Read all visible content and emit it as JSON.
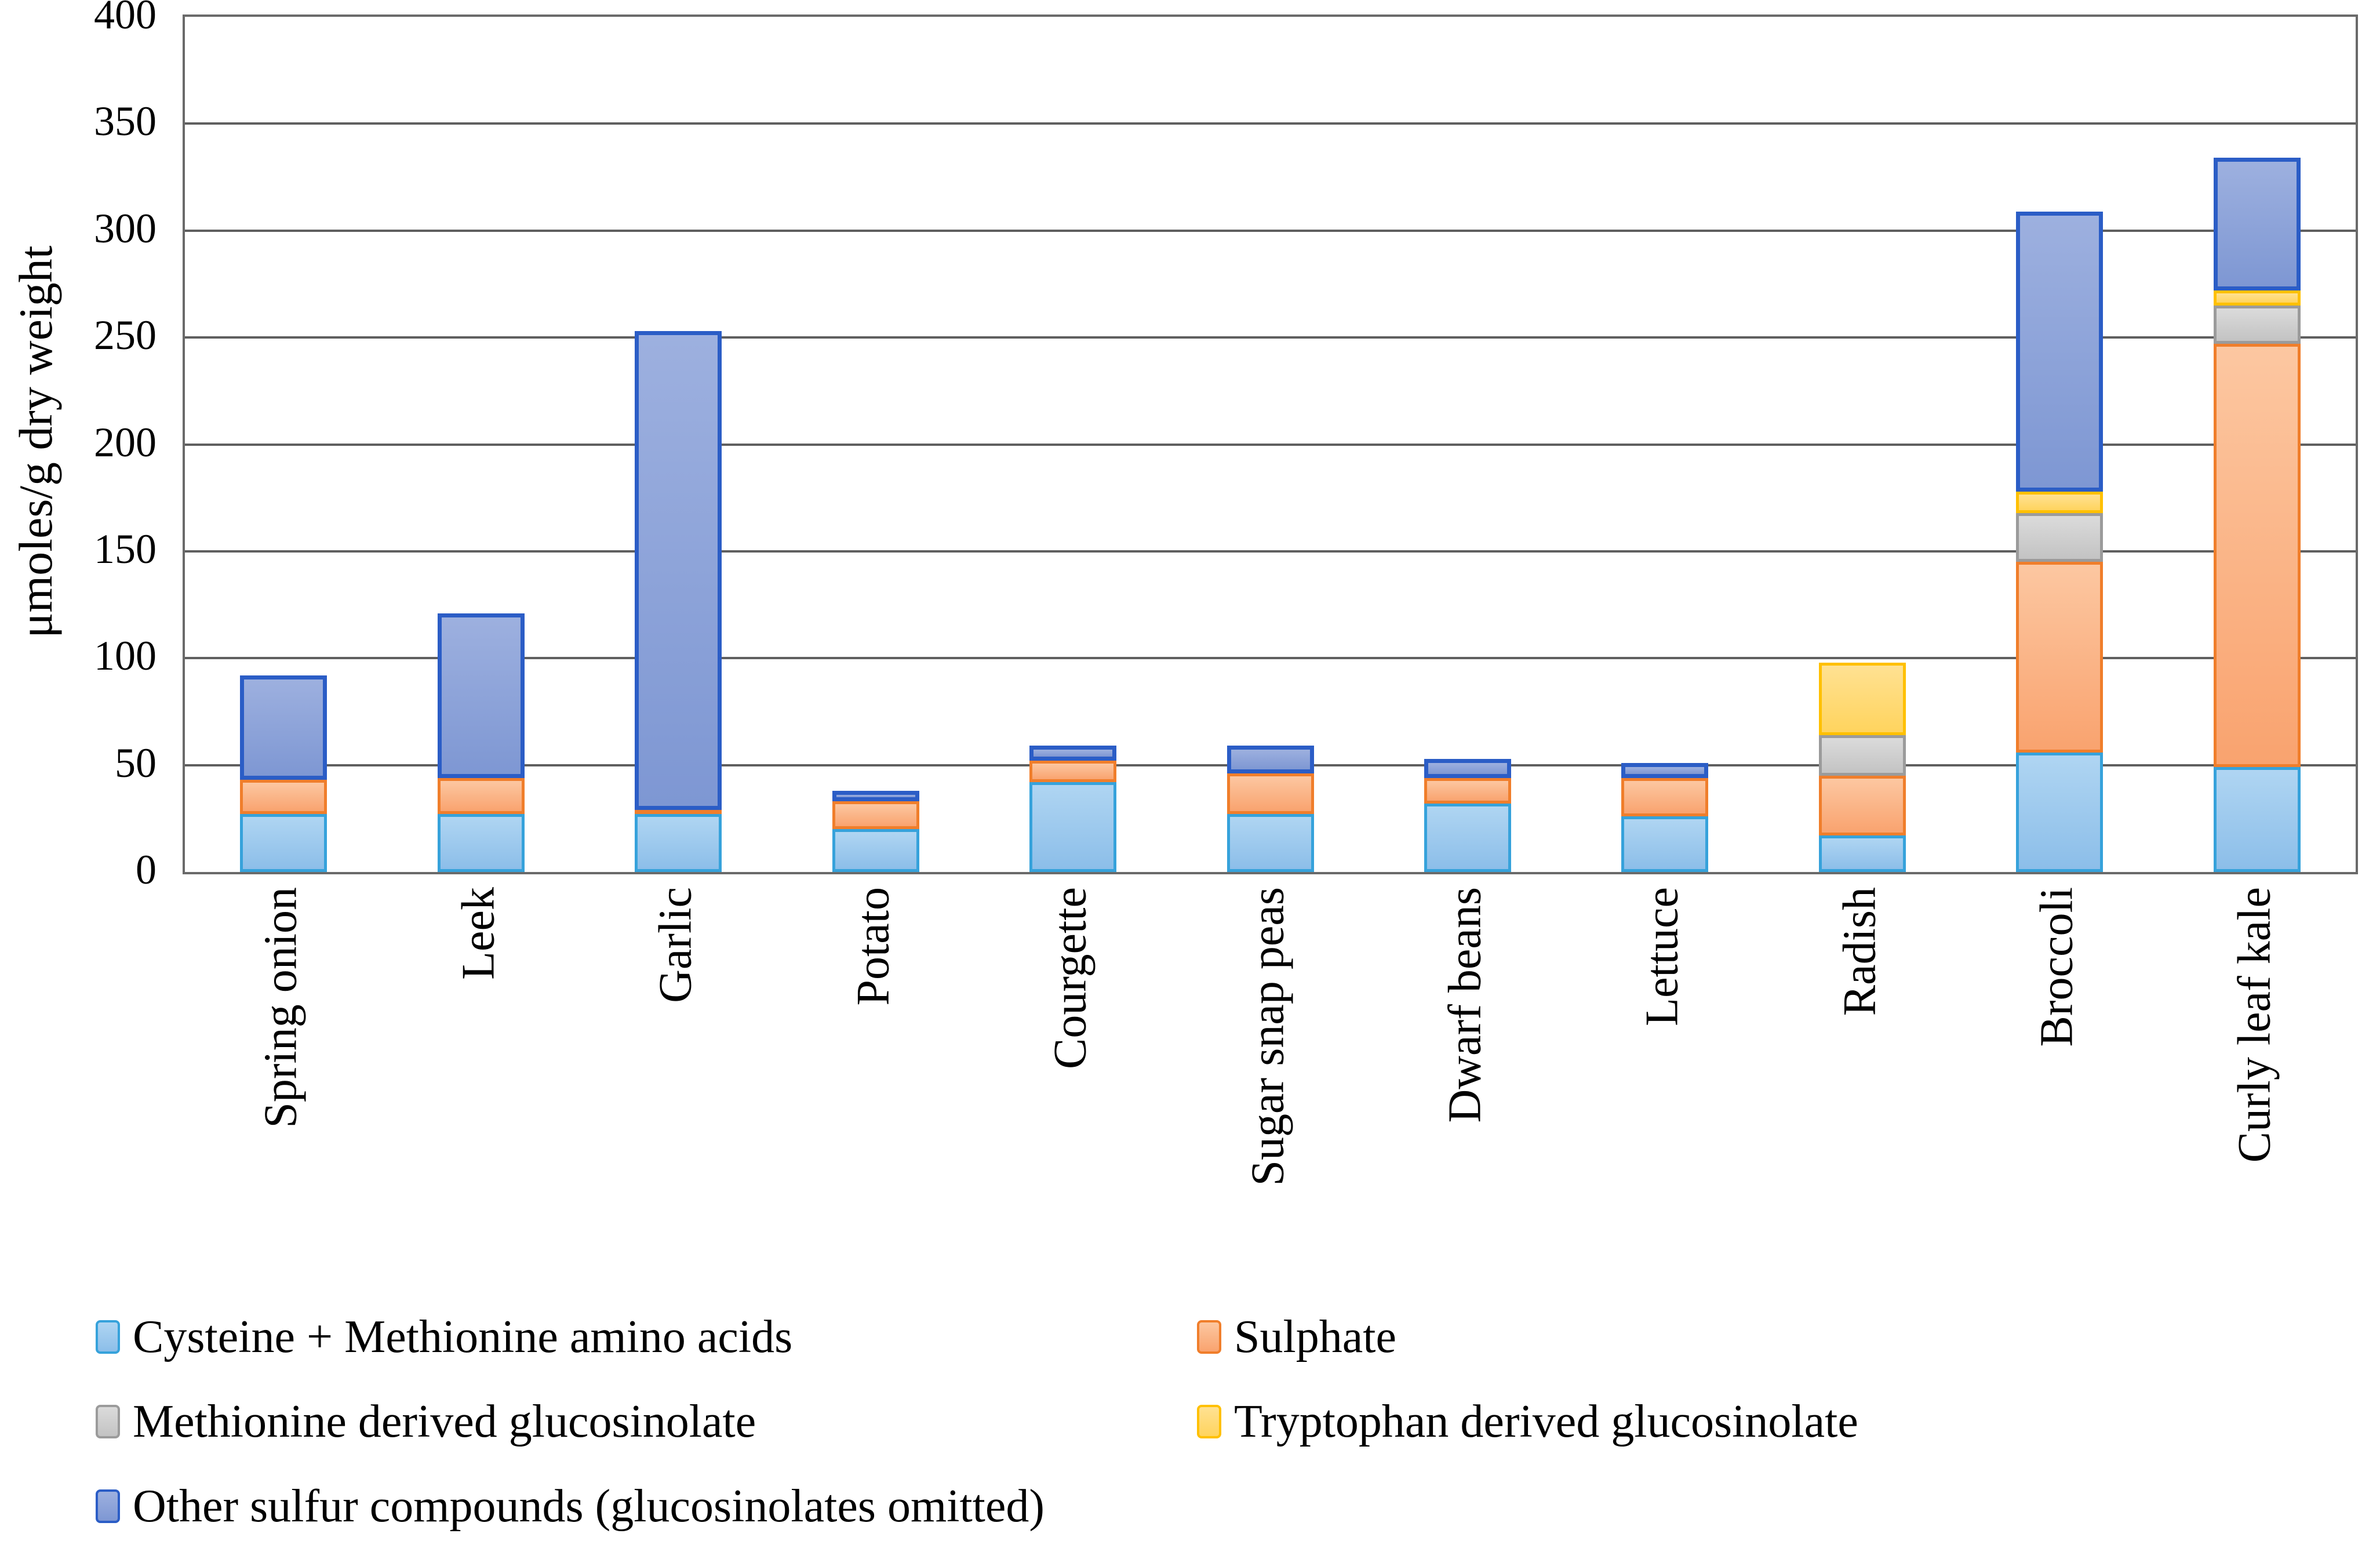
{
  "chart_data": {
    "type": "bar",
    "stacked": true,
    "orientation": "vertical",
    "title": "",
    "xlabel": "",
    "ylabel": "μmoles/g dry weight",
    "ylim": [
      0,
      400
    ],
    "ytick_step": 50,
    "yticks": [
      0,
      50,
      100,
      150,
      200,
      250,
      300,
      350,
      400
    ],
    "grid": "horizontal",
    "legend_position": "bottom",
    "categories": [
      "Spring onion",
      "Leek",
      "Garlic",
      "Potato",
      "Courgette",
      "Sugar snap peas",
      "Dwarf beans",
      "Lettuce",
      "Radish",
      "Broccoli",
      "Curly leaf kale"
    ],
    "series": [
      {
        "name": "Cysteine + Methionine amino acids",
        "values": [
          27,
          27,
          27,
          20,
          42,
          27,
          32,
          26,
          17,
          56,
          49
        ],
        "fill_top": "#AFD5F2",
        "fill_bottom": "#8CBEE9",
        "border": "#36A2DB"
      },
      {
        "name": "Sulphate",
        "values": [
          16,
          17,
          2,
          13,
          10,
          19,
          12,
          18,
          28,
          89,
          198
        ],
        "fill_top": "#FCC7A1",
        "fill_bottom": "#F9A36F",
        "border": "#F07E2B"
      },
      {
        "name": "Methionine derived glucosinolate",
        "values": [
          0,
          0,
          0,
          0,
          0,
          0,
          0,
          0,
          19,
          23,
          18
        ],
        "fill_top": "#DBDBDB",
        "fill_bottom": "#C3C3C3",
        "border": "#9B9B9B"
      },
      {
        "name": "Tryptophan derived glucosinolate",
        "values": [
          0,
          0,
          0,
          0,
          0,
          0,
          0,
          0,
          34,
          10,
          7
        ],
        "fill_top": "#FFE192",
        "fill_bottom": "#FFD45E",
        "border": "#FFC000"
      },
      {
        "name": "Other sulfur compounds (glucosinolates omitted)",
        "values": [
          49,
          77,
          224,
          5,
          7,
          13,
          9,
          7,
          0,
          131,
          62
        ],
        "fill_top": "#9DB0DF",
        "fill_bottom": "#7E97D3",
        "border": "#2B5DC6"
      }
    ],
    "totals": [
      92,
      121,
      253,
      38,
      59,
      59,
      53,
      51,
      98,
      309,
      334
    ]
  },
  "axis": {
    "gridline_color": "#5F5F5F",
    "axis_color": "#6A6A6A",
    "text_color": "#000000"
  }
}
